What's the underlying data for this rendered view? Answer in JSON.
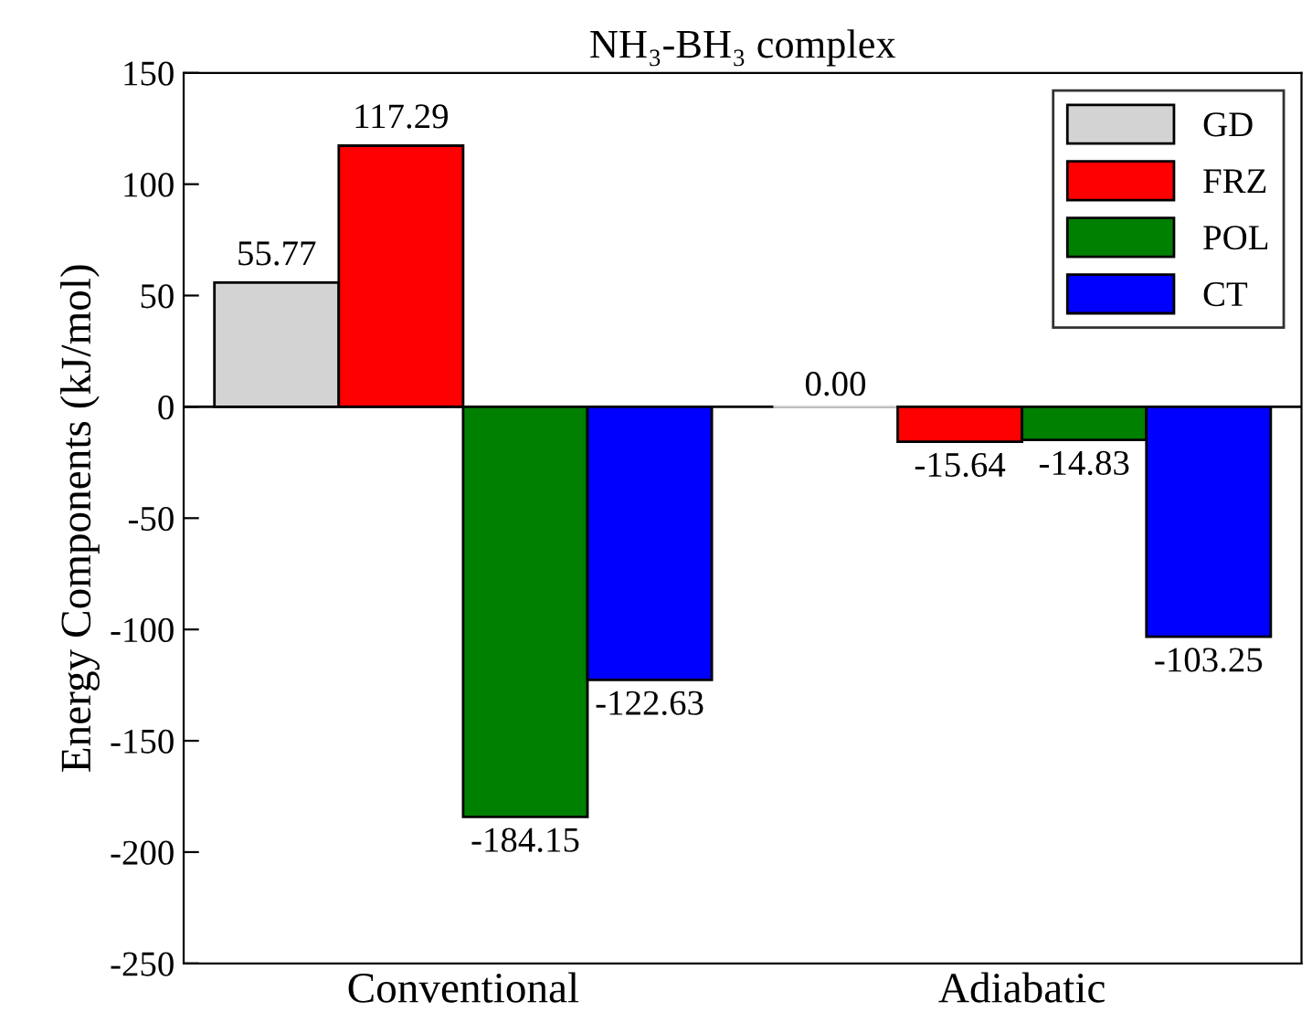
{
  "chart_data": {
    "type": "bar",
    "title": "NH₃-BH₃ complex",
    "ylabel": "Energy Components (kJ/mol)",
    "categories": [
      "Conventional",
      "Adiabatic"
    ],
    "series": [
      {
        "name": "GD",
        "color": "#d3d3d3",
        "values": [
          55.77,
          0.0
        ],
        "value_labels": [
          "55.77",
          "0.00"
        ]
      },
      {
        "name": "FRZ",
        "color": "#ff0000",
        "values": [
          117.29,
          -15.64
        ],
        "value_labels": [
          "117.29",
          "-15.64"
        ]
      },
      {
        "name": "POL",
        "color": "#008000",
        "values": [
          -184.15,
          -14.83
        ],
        "value_labels": [
          "-184.15",
          "-14.83"
        ]
      },
      {
        "name": "CT",
        "color": "#0000ff",
        "values": [
          -122.63,
          -103.25
        ],
        "value_labels": [
          "-122.63",
          "-103.25"
        ]
      }
    ],
    "ylim": [
      -250,
      150
    ],
    "yticks": [
      -250,
      -200,
      -150,
      -100,
      -50,
      0,
      50,
      100,
      150
    ],
    "ref_lines": [
      {
        "axis": "y",
        "value": 0,
        "color": "#000000"
      }
    ],
    "legend": "top right",
    "grid": false
  }
}
